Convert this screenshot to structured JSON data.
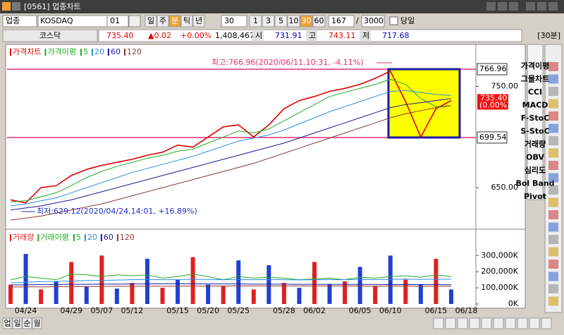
{
  "window": {
    "title": "[0561] 업종차트"
  },
  "toolbar": {
    "market": "업종",
    "index_name": "KOSDAQ",
    "code": "01",
    "periods": [
      "일",
      "주",
      "분",
      "틱",
      "년"
    ],
    "interval": "30",
    "intervals": [
      "1",
      "3",
      "5",
      "10",
      "30",
      "60"
    ],
    "count": "167",
    "max_count": "3000",
    "today": "당일"
  },
  "quote": {
    "name": "코스닥",
    "price": "735.40",
    "change": "▲0.02",
    "change_pct": "+0.00%",
    "volume": "1,408,467",
    "open_label": "시",
    "open": "731.91",
    "high_label": "고",
    "high": "743.11",
    "low_label": "저",
    "low": "717.68",
    "period": "[30분]"
  },
  "chart_data": [
    {
      "type": "line",
      "ma_label": "가격이평",
      "ylim": [
        609,
        790
      ],
      "yticks": [
        {
          "value": 650,
          "label": "650.00"
        },
        {
          "value": 750,
          "label": "750.00"
        }
      ],
      "hlines": [
        {
          "value": 766.96,
          "label": "766.96"
        },
        {
          "value": 699.54,
          "label": "699.54"
        }
      ],
      "last_price": {
        "value": 735.4,
        "label": "735.40",
        "change": "(0.00%)"
      },
      "annotations": [
        "최고:766.96(2020/06/11,10:31, -4.11%)",
        "최저:629.12(2020/04/24,14:01, +16.89%)"
      ],
      "series": [
        {
          "name": "가격차트",
          "color": "#e00000",
          "values": [
            638,
            635,
            650,
            652,
            662,
            668,
            672,
            675,
            678,
            682,
            685,
            692,
            690,
            700,
            710,
            712,
            700,
            712,
            728,
            736,
            740,
            745,
            748,
            752,
            758,
            765,
            735,
            700,
            728,
            736,
            null
          ]
        },
        {
          "name": "5",
          "color": "#22aa22",
          "values": [
            636,
            637,
            641,
            645,
            652,
            660,
            666,
            671,
            675,
            679,
            682,
            686,
            688,
            694,
            700,
            706,
            704,
            708,
            716,
            724,
            732,
            740,
            744,
            748,
            752,
            757,
            752,
            738,
            730,
            731,
            null
          ]
        },
        {
          "name": "20",
          "color": "#2a8fe0",
          "values": [
            632,
            634,
            637,
            640,
            645,
            650,
            655,
            660,
            665,
            669,
            673,
            677,
            681,
            686,
            691,
            696,
            699,
            702,
            707,
            713,
            719,
            725,
            730,
            735,
            740,
            745,
            746,
            744,
            742,
            741,
            null
          ]
        },
        {
          "name": "60",
          "color": "#1a1a9a",
          "values": [
            628,
            630,
            632,
            635,
            638,
            642,
            646,
            650,
            654,
            658,
            662,
            666,
            670,
            674,
            678,
            682,
            686,
            690,
            694,
            699,
            704,
            709,
            714,
            719,
            724,
            729,
            732,
            734,
            736,
            738,
            null
          ]
        },
        {
          "name": "120",
          "color": "#8b3a3a",
          "values": [
            618,
            620,
            622,
            625,
            628,
            631,
            634,
            638,
            642,
            646,
            650,
            654,
            658,
            662,
            666,
            670,
            674,
            679,
            684,
            689,
            694,
            699,
            704,
            709,
            714,
            719,
            723,
            726,
            729,
            731,
            null
          ]
        }
      ]
    },
    {
      "type": "bar",
      "ma_label": "거래이평",
      "categories": [
        null,
        "04/24",
        null,
        null,
        "04/29",
        null,
        "05/07",
        null,
        "05/12",
        null,
        null,
        "05/15",
        null,
        "05/20",
        null,
        "05/25",
        null,
        null,
        "05/28",
        null,
        "06/02",
        null,
        null,
        "06/05",
        null,
        "06/10",
        null,
        null,
        "06/15",
        null,
        "06/18"
      ],
      "ylim": [
        0,
        450000
      ],
      "yticks": [
        {
          "value": 0,
          "label": "0K"
        },
        {
          "value": 100000,
          "label": "100,000K"
        },
        {
          "value": 200000,
          "label": "200,000K"
        },
        {
          "value": 300000,
          "label": "300,000K"
        }
      ],
      "series": [
        {
          "name": "거래량",
          "color": "#e02020",
          "values": [
            120000,
            310000,
            90000,
            140000,
            260000,
            110000,
            300000,
            95000,
            130000,
            280000,
            100000,
            150000,
            290000,
            120000,
            110000,
            270000,
            90000,
            240000,
            130000,
            100000,
            260000,
            120000,
            140000,
            230000,
            110000,
            300000,
            150000,
            120000,
            280000,
            90000,
            null
          ]
        },
        {
          "name": "5",
          "color": "#22aa22",
          "values": [
            150000,
            170000,
            160000,
            150000,
            185000,
            180000,
            170000,
            180000,
            175000,
            180000,
            160000,
            170000,
            185000,
            170000,
            150000,
            170000,
            160000,
            165000,
            160000,
            150000,
            155000,
            160000,
            150000,
            165000,
            160000,
            170000,
            175000,
            165000,
            180000,
            170000,
            null
          ]
        },
        {
          "name": "20",
          "color": "#2a8fe0",
          "values": [
            130000,
            135000,
            138000,
            140000,
            142000,
            145000,
            146000,
            148000,
            150000,
            152000,
            150000,
            151000,
            153000,
            152000,
            150000,
            151000,
            150000,
            152000,
            150000,
            149000,
            150000,
            151000,
            150000,
            152000,
            151000,
            153000,
            154000,
            152000,
            154000,
            153000,
            null
          ]
        },
        {
          "name": "60",
          "color": "#1a1a9a",
          "values": [
            118000,
            119000,
            120000,
            121000,
            122000,
            122000,
            123000,
            123000,
            124000,
            124000,
            125000,
            125000,
            125000,
            124000,
            124000,
            124000,
            123000,
            123000,
            123000,
            122000,
            122000,
            122000,
            121000,
            121000,
            121000,
            120000,
            120000,
            120000,
            120000,
            119000,
            null
          ]
        },
        {
          "name": "120",
          "color": "#8b3a3a",
          "values": [
            105000,
            106000,
            106000,
            107000,
            107000,
            108000,
            108000,
            109000,
            109000,
            110000,
            110000,
            110000,
            111000,
            111000,
            111000,
            112000,
            112000,
            112000,
            112000,
            112000,
            112000,
            112000,
            112000,
            111000,
            111000,
            111000,
            111000,
            110000,
            110000,
            110000,
            null
          ]
        }
      ]
    }
  ],
  "sidebar": [
    "가격이평",
    "그물차트",
    "CCI",
    "MACD",
    "F-StoC",
    "S-StoC",
    "거래량",
    "OBV",
    "심리도",
    "Bol Band",
    "Pivot"
  ],
  "footer": [
    "업",
    "일",
    "순",
    "월"
  ]
}
